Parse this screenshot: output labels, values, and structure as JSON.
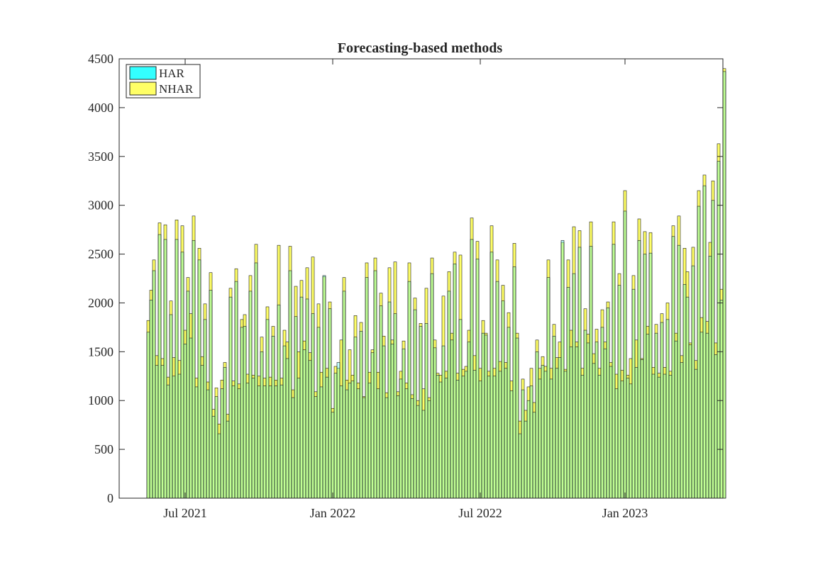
{
  "chart_data": {
    "type": "bar",
    "title": "Forecasting-based methods",
    "xlabel": "",
    "ylabel": "",
    "ylim": [
      0,
      4500
    ],
    "yticks": [
      0,
      500,
      1000,
      1500,
      2000,
      2500,
      3000,
      3500,
      4000,
      4500
    ],
    "xtick_labels": [
      "Jul 2021",
      "Jan 2022",
      "Jul 2022",
      "Jan 2023"
    ],
    "xtick_positions": [
      13,
      65,
      117,
      168
    ],
    "grid": false,
    "legend": {
      "location": "top-left",
      "entries": [
        "HAR",
        "NHAR"
      ]
    },
    "series": [
      {
        "name": "HAR",
        "color": "#33ffff",
        "values": [
          1700,
          2030,
          2330,
          1360,
          2700,
          1360,
          2650,
          1160,
          1880,
          1250,
          2650,
          1270,
          2520,
          1580,
          2120,
          1640,
          2640,
          1140,
          2440,
          1360,
          1830,
          1110,
          2130,
          840,
          1040,
          660,
          1120,
          1340,
          790,
          2060,
          1150,
          2220,
          1120,
          1750,
          1760,
          1180,
          2120,
          1230,
          2410,
          1150,
          1500,
          1150,
          1830,
          1150,
          1660,
          1150,
          1980,
          1160,
          1560,
          1430,
          2330,
          1030,
          1860,
          1230,
          2060,
          1520,
          2040,
          1410,
          1890,
          1040,
          1750,
          1140,
          2280,
          1240,
          1940,
          880,
          1280,
          1390,
          1150,
          2120,
          1110,
          1180,
          1200,
          1650,
          1120,
          1710,
          1030,
          2260,
          1180,
          1490,
          2330,
          1120,
          1970,
          1560,
          1030,
          2010,
          1580,
          1890,
          1050,
          1220,
          1530,
          1120,
          2220,
          1020,
          1930,
          950,
          1760,
          900,
          1790,
          1000,
          2300,
          1540,
          1260,
          1190,
          1560,
          1230,
          2120,
          1620,
          2400,
          1210,
          1830,
          1250,
          1300,
          1600,
          2650,
          1310,
          2450,
          1200,
          1690,
          1670,
          1250,
          2520,
          1250,
          2220,
          1300,
          2020,
          1330,
          1750,
          1100,
          2370,
          1640,
          660,
          1110,
          790,
          1000,
          1150,
          880,
          1500,
          1220,
          1360,
          1300,
          2260,
          1220,
          1660,
          1330,
          1440,
          2640,
          1300,
          2160,
          1550,
          2300,
          1550,
          2570,
          1260,
          1720,
          1590,
          2580,
          1380,
          1600,
          1260,
          1750,
          1530,
          1950,
          1350,
          2600,
          1120,
          2180,
          1200,
          2940,
          1230,
          1170,
          2140,
          1340,
          2640,
          1420,
          2500,
          1680,
          2510,
          1270,
          1690,
          1240,
          1800,
          1270,
          1830,
          1260,
          2680,
          1610,
          2590,
          1390,
          2190,
          2060,
          1570,
          2380,
          1320,
          2990,
          1700,
          3200,
          1690,
          2480,
          3050,
          1470,
          3450,
          2030,
          4370
        ]
      },
      {
        "name": "NHAR",
        "color": "#ffff66",
        "values": [
          1820,
          2130,
          2440,
          1460,
          2820,
          1430,
          2800,
          1240,
          2020,
          1440,
          2850,
          1410,
          2790,
          1720,
          2260,
          1890,
          2890,
          1230,
          2560,
          1450,
          1990,
          1190,
          2310,
          910,
          1130,
          760,
          1210,
          1390,
          860,
          2150,
          1200,
          2350,
          1170,
          1830,
          1880,
          1270,
          2280,
          1260,
          2600,
          1250,
          1650,
          1230,
          1960,
          1240,
          1760,
          1210,
          2590,
          1230,
          1720,
          1600,
          2580,
          1110,
          2170,
          1500,
          2230,
          1610,
          2360,
          1490,
          2470,
          1090,
          1990,
          1290,
          2270,
          1330,
          2010,
          920,
          1350,
          1330,
          1620,
          2260,
          1210,
          1520,
          1260,
          1870,
          1180,
          1800,
          1040,
          2410,
          1290,
          1520,
          2460,
          1290,
          2100,
          1660,
          1080,
          2360,
          1620,
          2420,
          1090,
          1300,
          1610,
          1180,
          2410,
          1060,
          2050,
          1000,
          1790,
          1120,
          2150,
          1030,
          2460,
          1620,
          1280,
          1260,
          2070,
          1300,
          2320,
          1690,
          2520,
          1280,
          2490,
          1320,
          1350,
          1720,
          2870,
          1460,
          2630,
          1330,
          1820,
          1690,
          1300,
          2790,
          1330,
          2440,
          1400,
          2180,
          1390,
          1900,
          1200,
          2610,
          1690,
          790,
          1220,
          900,
          1140,
          1330,
          980,
          1620,
          1330,
          1450,
          1350,
          2440,
          1330,
          1780,
          1440,
          1600,
          2620,
          1320,
          2440,
          1720,
          2780,
          1600,
          2740,
          1330,
          1940,
          1680,
          2830,
          1480,
          1730,
          1330,
          1930,
          1600,
          2010,
          1390,
          2830,
          1270,
          2300,
          1310,
          3150,
          1260,
          1430,
          2280,
          1620,
          2860,
          1430,
          2730,
          1760,
          2720,
          1340,
          1780,
          1280,
          1890,
          1340,
          2000,
          1300,
          2790,
          1690,
          2890,
          1460,
          2560,
          2320,
          1590,
          2570,
          1410,
          3150,
          1850,
          3310,
          1810,
          2620,
          3250,
          1590,
          3630,
          2140,
          4400
        ]
      }
    ]
  }
}
